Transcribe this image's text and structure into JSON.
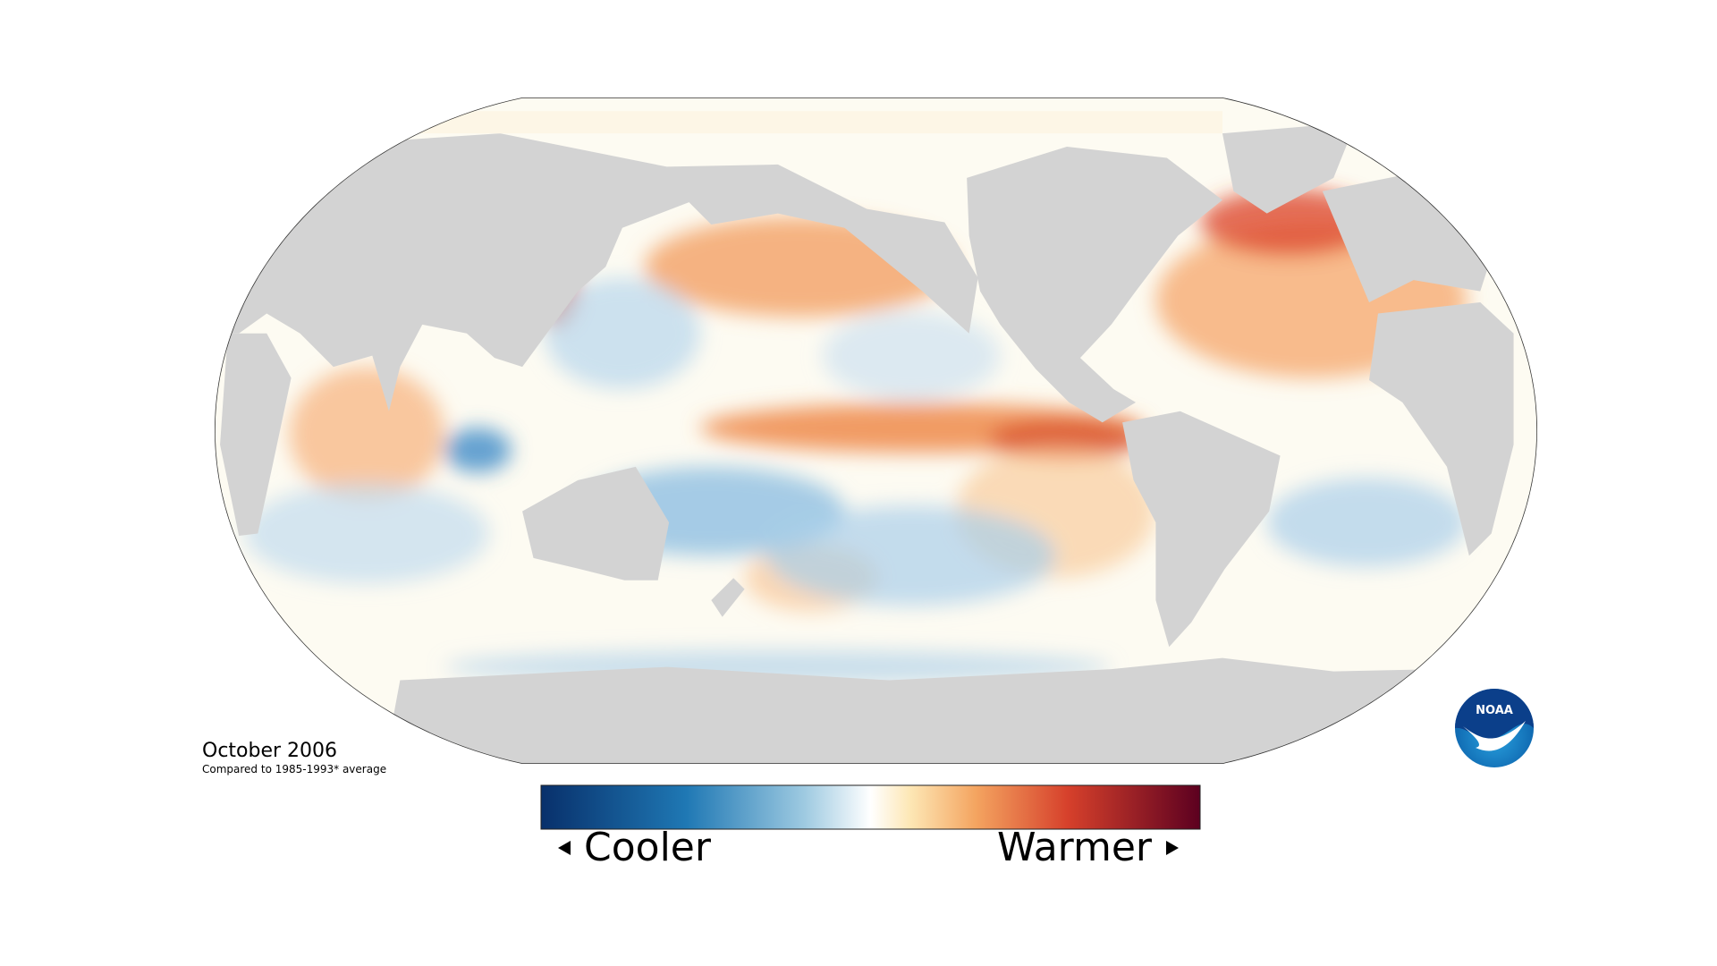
{
  "map": {
    "date": "October 2006",
    "baseline": "Compared to 1985-1993* average"
  },
  "legend": {
    "low": "Cooler",
    "high": "Warmer"
  },
  "logo": {
    "text": "NOAA"
  }
}
